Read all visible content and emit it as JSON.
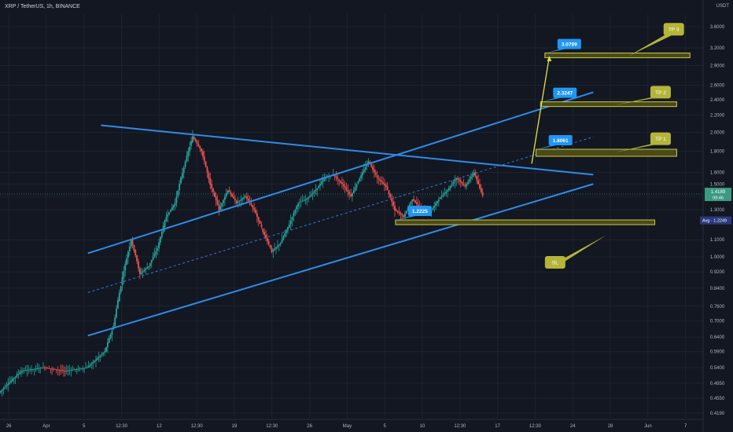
{
  "header": {
    "symbol": "XRP / TetherUS, 1h, BINANCE",
    "currency": "USDT"
  },
  "colors": {
    "background": "#131722",
    "grid": "#1e222d",
    "trendline": "#2f8be8",
    "channel_mid": "#3a78c9",
    "zone_fill": "#4a4a17",
    "zone_border": "#c9c94e",
    "tp_label": "#b5b53a",
    "value_label": "#2196f3",
    "arrow": "#e2e24a",
    "candle_up": "#26a69a",
    "candle_down": "#ef5350",
    "price_label": "#3a9a82",
    "avg_label": "#2a3a7a"
  },
  "chart_data": {
    "type": "candlestick",
    "y_scale": "log",
    "ylim": [
      0.419,
      3.6
    ],
    "y_ticks": [
      "3.6000",
      "3.2000",
      "2.9000",
      "2.6000",
      "2.4000",
      "2.2000",
      "2.0000",
      "1.8000",
      "1.6000",
      "1.5000",
      "1.4000",
      "1.3000",
      "1.1000",
      "1.0000",
      "0.9200",
      "0.8400",
      "0.7600",
      "0.7000",
      "0.6400",
      "0.5900",
      "0.5400",
      "0.4950",
      "0.4550",
      "0.4190"
    ],
    "x_ticks": [
      "26",
      "Apr",
      "5",
      "12:30",
      "12",
      "12:30",
      "19",
      "12:30",
      "26",
      "May",
      "5",
      "10",
      "12:30",
      "17",
      "12:30",
      "24",
      "28",
      "Jun",
      "7"
    ],
    "price_label": {
      "value": "1.4189",
      "countdown": "09:46"
    },
    "avg_label": {
      "text": "Avg",
      "value": "1.2249"
    },
    "price_series": [
      {
        "x": 0,
        "y": 0.47
      },
      {
        "x": 5,
        "y": 0.53
      },
      {
        "x": 10,
        "y": 0.54
      },
      {
        "x": 15,
        "y": 0.53
      },
      {
        "x": 20,
        "y": 0.54
      },
      {
        "x": 24,
        "y": 0.59
      },
      {
        "x": 26,
        "y": 0.68
      },
      {
        "x": 28,
        "y": 0.89
      },
      {
        "x": 30,
        "y": 1.1
      },
      {
        "x": 32,
        "y": 0.91
      },
      {
        "x": 34,
        "y": 0.95
      },
      {
        "x": 36,
        "y": 1.05
      },
      {
        "x": 38,
        "y": 1.25
      },
      {
        "x": 40,
        "y": 1.35
      },
      {
        "x": 42,
        "y": 1.65
      },
      {
        "x": 44,
        "y": 1.95
      },
      {
        "x": 46,
        "y": 1.8
      },
      {
        "x": 48,
        "y": 1.5
      },
      {
        "x": 50,
        "y": 1.3
      },
      {
        "x": 52,
        "y": 1.45
      },
      {
        "x": 54,
        "y": 1.35
      },
      {
        "x": 56,
        "y": 1.4
      },
      {
        "x": 58,
        "y": 1.3
      },
      {
        "x": 60,
        "y": 1.15
      },
      {
        "x": 62,
        "y": 1.03
      },
      {
        "x": 64,
        "y": 1.08
      },
      {
        "x": 66,
        "y": 1.2
      },
      {
        "x": 68,
        "y": 1.35
      },
      {
        "x": 70,
        "y": 1.38
      },
      {
        "x": 72,
        "y": 1.45
      },
      {
        "x": 74,
        "y": 1.55
      },
      {
        "x": 76,
        "y": 1.58
      },
      {
        "x": 78,
        "y": 1.5
      },
      {
        "x": 80,
        "y": 1.4
      },
      {
        "x": 82,
        "y": 1.55
      },
      {
        "x": 84,
        "y": 1.7
      },
      {
        "x": 86,
        "y": 1.55
      },
      {
        "x": 88,
        "y": 1.48
      },
      {
        "x": 90,
        "y": 1.3
      },
      {
        "x": 92,
        "y": 1.25
      },
      {
        "x": 94,
        "y": 1.38
      },
      {
        "x": 96,
        "y": 1.3
      },
      {
        "x": 98,
        "y": 1.28
      },
      {
        "x": 100,
        "y": 1.38
      },
      {
        "x": 102,
        "y": 1.45
      },
      {
        "x": 104,
        "y": 1.55
      },
      {
        "x": 106,
        "y": 1.48
      },
      {
        "x": 108,
        "y": 1.6
      },
      {
        "x": 110,
        "y": 1.4
      }
    ],
    "trendlines": [
      {
        "name": "resistance",
        "x1": 23,
        "y1": 2.08,
        "x2": 135,
        "y2": 1.58
      },
      {
        "name": "channel-top",
        "x1": 20,
        "y1": 1.02,
        "x2": 135,
        "y2": 2.5
      },
      {
        "name": "channel-bottom",
        "x1": 20,
        "y1": 0.645,
        "x2": 135,
        "y2": 1.5
      },
      {
        "name": "channel-mid",
        "x1": 20,
        "y1": 0.82,
        "x2": 135,
        "y2": 1.95,
        "dashed": true
      }
    ],
    "zones": [
      {
        "name": "TP 3",
        "value": "3.0789",
        "x1": 124,
        "x2": 157,
        "y1": 3.05,
        "y2": 3.11,
        "label_y": 3.55
      },
      {
        "name": "TP 2",
        "value": "2.3247",
        "x1": 123,
        "x2": 154,
        "y1": 2.31,
        "y2": 2.37,
        "label_y": 2.5
      },
      {
        "name": "TP 1",
        "value": "1.8061",
        "x1": 122,
        "x2": 154,
        "y1": 1.75,
        "y2": 1.82,
        "label_y": 1.93
      },
      {
        "name": "SL",
        "value": "1.2225",
        "x1": 90,
        "x2": 149,
        "y1": 1.2,
        "y2": 1.228,
        "label_y": 0.97
      }
    ],
    "arrow": {
      "x1": 121,
      "y1": 1.68,
      "x2": 125,
      "y2": 3.05
    }
  }
}
